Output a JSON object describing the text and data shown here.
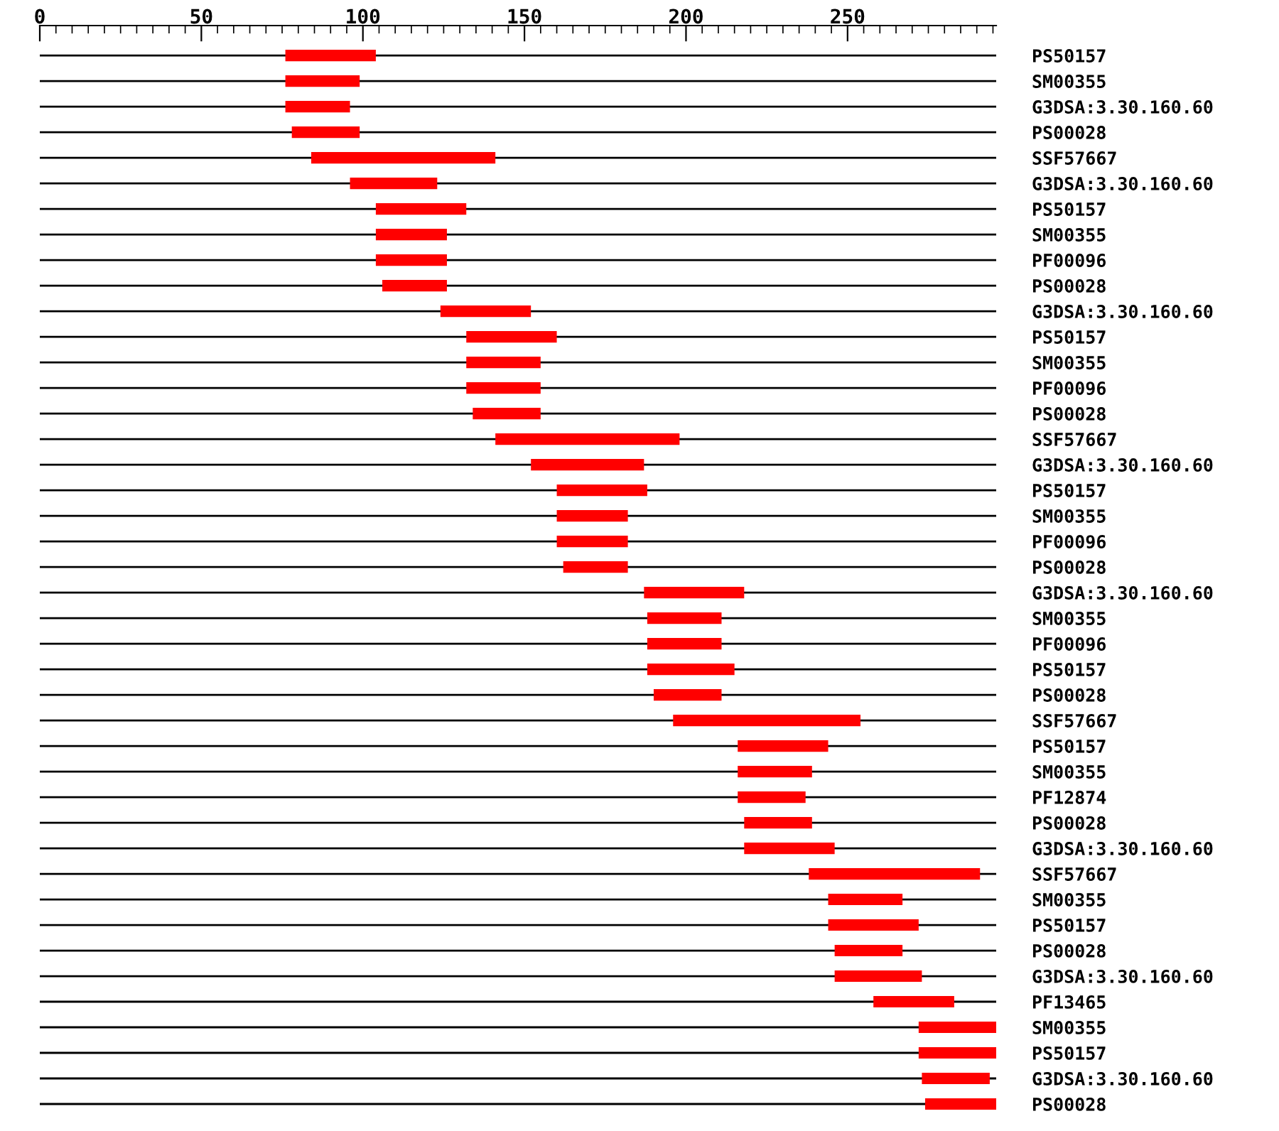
{
  "chart_data": {
    "type": "bar",
    "orientation": "horizontal",
    "color": "#ff0000",
    "categories": [
      "PS50157",
      "SM00355",
      "G3DSA:3.30.160.60",
      "PS00028",
      "SSF57667",
      "G3DSA:3.30.160.60",
      "PS50157",
      "SM00355",
      "PF00096",
      "PS00028",
      "G3DSA:3.30.160.60",
      "PS50157",
      "SM00355",
      "PF00096",
      "PS00028",
      "SSF57667",
      "G3DSA:3.30.160.60",
      "PS50157",
      "SM00355",
      "PF00096",
      "PS00028",
      "G3DSA:3.30.160.60",
      "SM00355",
      "PF00096",
      "PS50157",
      "PS00028",
      "SSF57667",
      "PS50157",
      "SM00355",
      "PF12874",
      "PS00028",
      "G3DSA:3.30.160.60",
      "SSF57667",
      "SM00355",
      "PS50157",
      "PS00028",
      "G3DSA:3.30.160.60",
      "PF13465",
      "SM00355",
      "PS50157",
      "G3DSA:3.30.160.60",
      "PS00028"
    ],
    "base": [
      76,
      76,
      76,
      78,
      84,
      96,
      104,
      104,
      104,
      106,
      124,
      132,
      132,
      132,
      134,
      141,
      152,
      160,
      160,
      160,
      162,
      187,
      188,
      188,
      188,
      190,
      196,
      216,
      216,
      216,
      218,
      218,
      238,
      244,
      244,
      246,
      246,
      258,
      272,
      272,
      273,
      274
    ],
    "values": [
      28,
      23,
      20,
      21,
      57,
      27,
      28,
      22,
      22,
      20,
      28,
      28,
      23,
      23,
      21,
      57,
      35,
      28,
      22,
      22,
      20,
      31,
      23,
      23,
      27,
      21,
      58,
      28,
      23,
      21,
      21,
      28,
      53,
      23,
      28,
      21,
      27,
      25,
      24,
      24,
      21,
      22
    ],
    "xlim": [
      0,
      296
    ],
    "xticks": [
      0,
      {
        "value": 5,
        "label": null
      },
      {
        "value": 10,
        "label": null
      },
      {
        "value": 15,
        "label": null
      },
      {
        "value": 20,
        "label": null
      },
      {
        "value": 25,
        "label": null
      },
      {
        "value": 30,
        "label": null
      },
      {
        "value": 35,
        "label": null
      },
      {
        "value": 40,
        "label": null
      },
      {
        "value": 45,
        "label": null
      },
      50,
      {
        "value": 55,
        "label": null
      },
      {
        "value": 60,
        "label": null
      },
      {
        "value": 65,
        "label": null
      },
      {
        "value": 70,
        "label": null
      },
      {
        "value": 75,
        "label": null
      },
      {
        "value": 80,
        "label": null
      },
      {
        "value": 85,
        "label": null
      },
      {
        "value": 90,
        "label": null
      },
      {
        "value": 95,
        "label": null
      },
      100,
      {
        "value": 105,
        "label": null
      },
      {
        "value": 110,
        "label": null
      },
      {
        "value": 115,
        "label": null
      },
      {
        "value": 120,
        "label": null
      },
      {
        "value": 125,
        "label": null
      },
      {
        "value": 130,
        "label": null
      },
      {
        "value": 135,
        "label": null
      },
      {
        "value": 140,
        "label": null
      },
      {
        "value": 145,
        "label": null
      },
      150,
      {
        "value": 155,
        "label": null
      },
      {
        "value": 160,
        "label": null
      },
      {
        "value": 165,
        "label": null
      },
      {
        "value": 170,
        "label": null
      },
      {
        "value": 175,
        "label": null
      },
      {
        "value": 180,
        "label": null
      },
      {
        "value": 185,
        "label": null
      },
      {
        "value": 190,
        "label": null
      },
      {
        "value": 195,
        "label": null
      },
      200,
      {
        "value": 205,
        "label": null
      },
      {
        "value": 210,
        "label": null
      },
      {
        "value": 215,
        "label": null
      },
      {
        "value": 220,
        "label": null
      },
      {
        "value": 225,
        "label": null
      },
      {
        "value": 230,
        "label": null
      },
      {
        "value": 235,
        "label": null
      },
      {
        "value": 240,
        "label": null
      },
      {
        "value": 245,
        "label": null
      },
      250,
      {
        "value": 255,
        "label": null
      },
      {
        "value": 260,
        "label": null
      },
      {
        "value": 265,
        "label": null
      },
      {
        "value": 270,
        "label": null
      },
      {
        "value": 275,
        "label": null
      },
      {
        "value": 280,
        "label": null
      },
      {
        "value": 285,
        "label": null
      },
      {
        "value": 290,
        "label": null
      },
      {
        "value": 295,
        "label": null
      }
    ],
    "grid": "y"
  }
}
